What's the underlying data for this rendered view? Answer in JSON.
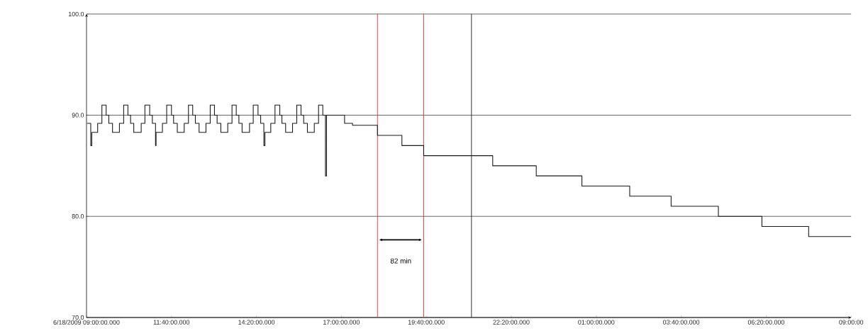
{
  "chart_data": {
    "type": "step",
    "x": [
      "2009-06-18T09:01",
      "2009-06-18T09:08",
      "2009-06-18T09:10",
      "2009-06-18T09:21",
      "2009-06-18T09:29",
      "2009-06-18T09:37",
      "2009-06-18T09:42",
      "2009-06-18T09:49",
      "2009-06-18T10:02",
      "2009-06-18T10:10",
      "2009-06-18T10:18",
      "2009-06-18T10:23",
      "2009-06-18T10:29",
      "2009-06-18T10:43",
      "2009-06-18T10:50",
      "2009-06-18T10:59",
      "2009-06-18T11:04",
      "2009-06-18T11:10",
      "2009-06-18T11:11",
      "2009-06-18T11:23",
      "2009-06-18T11:31",
      "2009-06-18T11:40",
      "2009-06-18T11:44",
      "2009-06-18T11:51",
      "2009-06-18T12:04",
      "2009-06-18T12:12",
      "2009-06-18T12:20",
      "2009-06-18T12:25",
      "2009-06-18T12:32",
      "2009-06-18T12:45",
      "2009-06-18T12:53",
      "2009-06-18T13:01",
      "2009-06-18T13:06",
      "2009-06-18T13:13",
      "2009-06-18T13:26",
      "2009-06-18T13:34",
      "2009-06-18T13:42",
      "2009-06-18T13:47",
      "2009-06-18T13:53",
      "2009-06-18T14:07",
      "2009-06-18T14:14",
      "2009-06-18T14:23",
      "2009-06-18T14:28",
      "2009-06-18T14:34",
      "2009-06-18T14:36",
      "2009-06-18T14:47",
      "2009-06-18T14:55",
      "2009-06-18T15:04",
      "2009-06-18T15:08",
      "2009-06-18T15:15",
      "2009-06-18T15:28",
      "2009-06-18T15:36",
      "2009-06-18T15:44",
      "2009-06-18T15:49",
      "2009-06-18T15:56",
      "2009-06-18T16:09",
      "2009-06-18T16:17",
      "2009-06-18T16:25",
      "2009-06-18T16:30",
      "2009-06-18T16:32",
      "2009-06-18T17:06",
      "2009-06-18T17:21",
      "2009-06-18T18:08",
      "2009-06-18T18:54",
      "2009-06-18T19:35",
      "2009-06-18T21:45",
      "2009-06-18T23:07",
      "2009-06-19T00:33",
      "2009-06-19T02:03",
      "2009-06-19T03:21",
      "2009-06-19T04:50",
      "2009-06-19T06:12",
      "2009-06-19T07:40",
      "2009-06-19T09:00"
    ],
    "series": [
      {
        "color": "#1a1a1a",
        "values": [
          89.2,
          87,
          88.3,
          89.2,
          91,
          90,
          89.2,
          88.3,
          89.2,
          91,
          90,
          89.2,
          88.3,
          89.2,
          91,
          90,
          89.2,
          87,
          88.3,
          89.2,
          91,
          90,
          89.2,
          88.3,
          89.2,
          91,
          90,
          89.2,
          88.3,
          89.2,
          91,
          90,
          89.2,
          88.3,
          89.2,
          91,
          90,
          89.2,
          88.3,
          89.2,
          91,
          90,
          89.2,
          87,
          88.3,
          89.2,
          91,
          90,
          89.2,
          88.3,
          89.2,
          91,
          90,
          89.2,
          88.3,
          89.2,
          91,
          90,
          84,
          90,
          89.2,
          89,
          88,
          87,
          86,
          85,
          84,
          83,
          82,
          81,
          80,
          79,
          78,
          78
        ]
      }
    ],
    "xlim": [
      "2009-06-18T09:00",
      "2009-06-19T09:00"
    ],
    "ylim": [
      70,
      100
    ],
    "xticks": [
      {
        "value": "2009-06-18T09:00",
        "label": "6/18/2009 09:00:00.000"
      },
      {
        "value": "2009-06-18T11:40",
        "label": "11:40:00.000"
      },
      {
        "value": "2009-06-18T14:20",
        "label": "14:20:00.000"
      },
      {
        "value": "2009-06-18T17:00",
        "label": "17:00:00.000"
      },
      {
        "value": "2009-06-18T19:40",
        "label": "19:40:00.000"
      },
      {
        "value": "2009-06-18T22:20",
        "label": "22:20:00.000"
      },
      {
        "value": "2009-06-19T01:00",
        "label": "01:00:00.000"
      },
      {
        "value": "2009-06-19T03:40",
        "label": "03:40:00.000"
      },
      {
        "value": "2009-06-19T06:20",
        "label": "06:20:00.000"
      },
      {
        "value": "2009-06-19T09:00",
        "label": "09:00:00"
      }
    ],
    "yticks": [
      {
        "value": 70,
        "label": "70.0"
      },
      {
        "value": 80,
        "label": "80.0"
      },
      {
        "value": 90,
        "label": "90.0"
      },
      {
        "value": 100,
        "label": "100.0"
      }
    ],
    "grid": "y",
    "ref_lines": [
      {
        "axis": "x",
        "value": "2009-06-18T18:08",
        "color": "#e03030"
      },
      {
        "axis": "x",
        "value": "2009-06-18T19:35",
        "color": "#e03030"
      },
      {
        "axis": "x",
        "value": "2009-06-18T21:05",
        "color": "#1a1a1a"
      }
    ],
    "annotations": [
      {
        "text": "82 min",
        "x": "2009-06-18T18:52",
        "y": 75.6
      }
    ]
  }
}
